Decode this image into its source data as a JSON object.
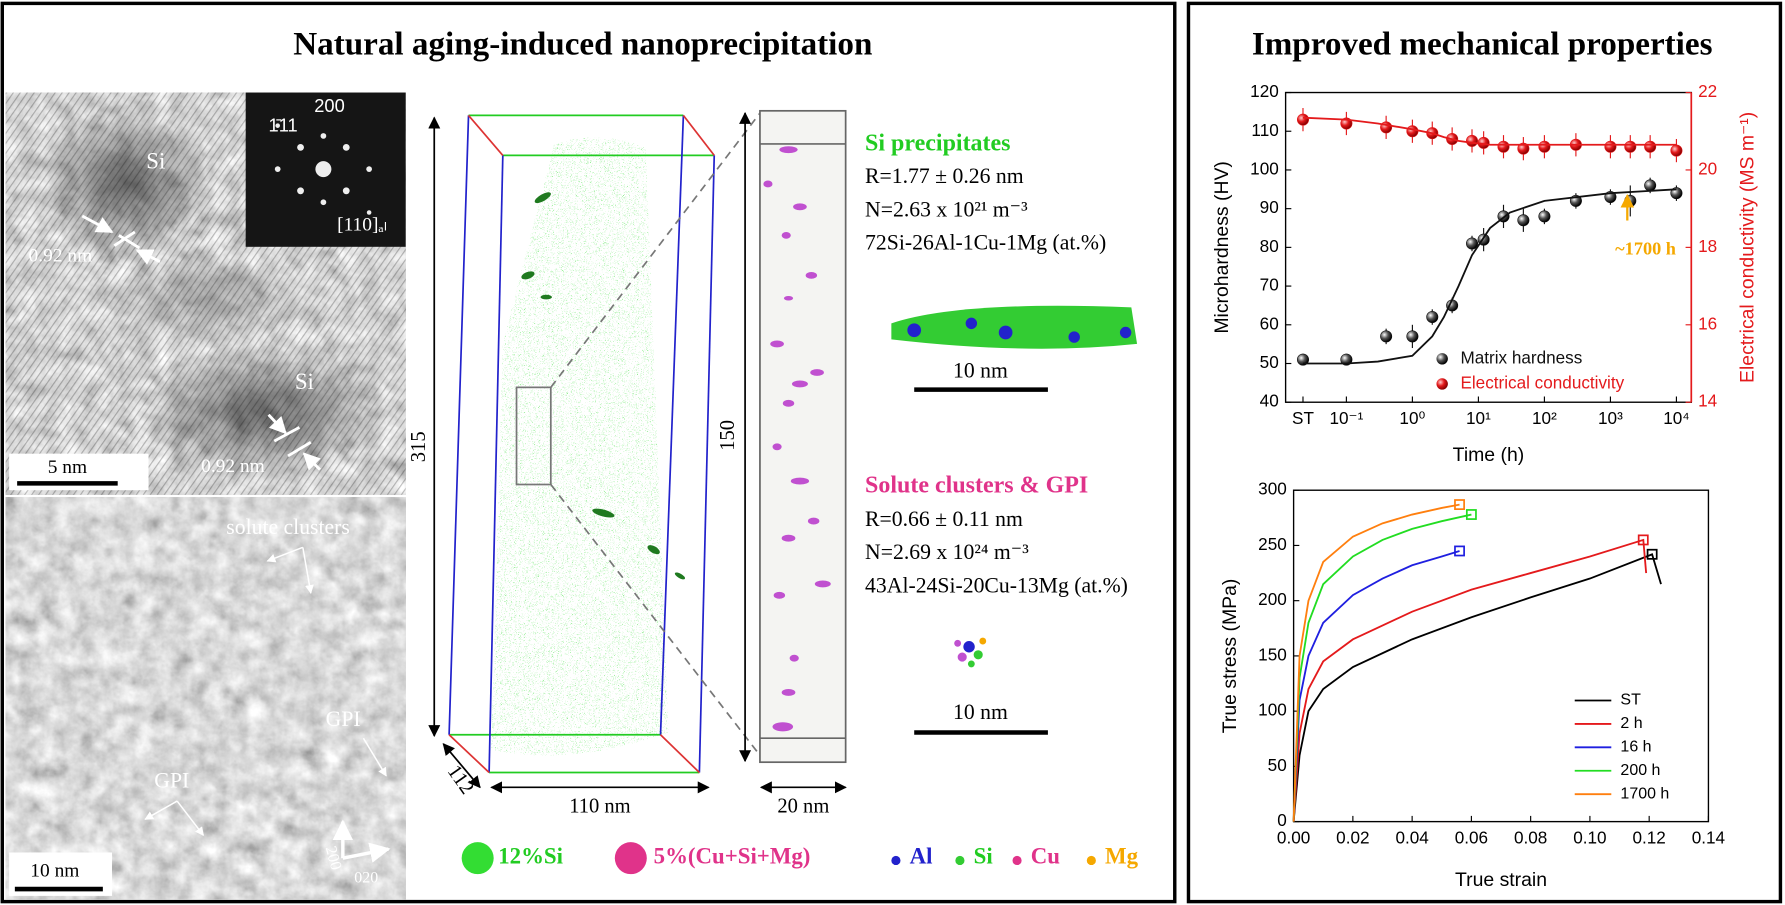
{
  "panel_left": {
    "title": "Natural aging-induced nanoprecipitation",
    "hrtem": {
      "label_si_1": "Si",
      "label_si_2": "Si",
      "spacing_1": "0.92 nm",
      "spacing_2": "0.92 nm",
      "scale": "5 nm",
      "fft_1": "1̄11",
      "fft_2": "200",
      "fft_zone": "[110]ₐₗ"
    },
    "haadf": {
      "clusters": "solute clusters",
      "gpi_1": "GPI",
      "gpi_2": "GPI",
      "scale": "10 nm",
      "dir_1": "200",
      "dir_2": "020"
    },
    "apt": {
      "dim_height": "315",
      "dim_slab": "150",
      "dim_depth": "112",
      "dim_width": "110 nm",
      "dim_slab_width": "20 nm"
    },
    "si": {
      "heading": "Si precipitates",
      "radius": "R=1.77 ± 0.26 nm",
      "density": "N=2.63 x 10²¹ m⁻³",
      "composition": "72Si-26Al-1Cu-1Mg (at.%)",
      "scale": "10 nm"
    },
    "gpi": {
      "heading": "Solute clusters & GPI",
      "radius": "R=0.66 ± 0.11 nm",
      "density": "N=2.69 x 10²⁴ m⁻³",
      "composition": "43Al-24Si-20Cu-13Mg (at.%)",
      "scale": "10 nm"
    },
    "legend": [
      "12%Si",
      "5%(Cu+Si+Mg)",
      "Al",
      "Si",
      "Cu",
      "Mg"
    ]
  },
  "panel_right": {
    "title": "Improved mechanical properties"
  },
  "chart_data": [
    {
      "type": "scatter",
      "x_label": "Time (h)",
      "y_label": "Microhardness (HV)",
      "y2_label": "Electrical conductivity (MS m⁻¹)",
      "log_x": true,
      "xlim": [
        0.012,
        16800
      ],
      "xticks": [
        {
          "value": 0.022,
          "label": "ST"
        },
        {
          "value": 0.1,
          "label": "10⁻¹"
        },
        {
          "value": 1,
          "label": "10⁰"
        },
        {
          "value": 10,
          "label": "10¹"
        },
        {
          "value": 100,
          "label": "10²"
        },
        {
          "value": 1000,
          "label": "10³"
        },
        {
          "value": 10000,
          "label": "10⁴"
        }
      ],
      "ylim": [
        40,
        120
      ],
      "yticks": [
        40,
        50,
        60,
        70,
        80,
        90,
        100,
        110,
        120
      ],
      "y2lim": [
        14,
        22
      ],
      "y2ticks": [
        14,
        16,
        18,
        20,
        22
      ],
      "legend": "lower right",
      "series": [
        {
          "name": "Matrix hardness",
          "color": "#111111",
          "mode": "markers",
          "x": [
            0.022,
            0.1,
            0.4,
            1,
            2,
            4,
            8,
            12,
            24,
            48,
            100,
            300,
            1000,
            2000,
            4000,
            10000
          ],
          "values": [
            51,
            51,
            57,
            57,
            62,
            65,
            81,
            82,
            88,
            87,
            88,
            92,
            93,
            92,
            96,
            94
          ],
          "errors": [
            1,
            1,
            2,
            3,
            2,
            2,
            2,
            3,
            3,
            3,
            2,
            2,
            2,
            4,
            2,
            2
          ]
        },
        {
          "name": "Electrical conductivity",
          "color": "#e41a1c",
          "mode": "markers",
          "axis": "y2",
          "x": [
            0.022,
            0.1,
            0.4,
            1,
            2,
            4,
            8,
            12,
            24,
            48,
            100,
            300,
            1000,
            2000,
            4000,
            10000
          ],
          "values": [
            21.3,
            21.2,
            21.1,
            21.0,
            20.95,
            20.8,
            20.75,
            20.7,
            20.6,
            20.55,
            20.6,
            20.65,
            20.6,
            20.6,
            20.6,
            20.5
          ],
          "errors": [
            0.3,
            0.3,
            0.3,
            0.3,
            0.3,
            0.3,
            0.3,
            0.3,
            0.3,
            0.3,
            0.3,
            0.3,
            0.3,
            0.3,
            0.3,
            0.3
          ]
        },
        {
          "color": "#111111",
          "mode": "line",
          "x": [
            0.022,
            0.1,
            0.3,
            1,
            2,
            3,
            5,
            8,
            15,
            30,
            100,
            1000,
            10000
          ],
          "values": [
            50,
            50,
            50.5,
            52,
            57,
            62,
            70,
            78,
            85,
            89,
            92,
            94,
            95
          ]
        },
        {
          "color": "#e41a1c",
          "mode": "line",
          "axis": "y2",
          "x": [
            0.022,
            0.1,
            0.3,
            1,
            2,
            3,
            5,
            8,
            15,
            30,
            100,
            1000,
            10000
          ],
          "values": [
            21.35,
            21.3,
            21.2,
            21.05,
            20.95,
            20.85,
            20.75,
            20.7,
            20.65,
            20.65,
            20.65,
            20.65,
            20.65
          ]
        }
      ],
      "annotation": {
        "text": "~1700 h",
        "color": "#f5a800"
      }
    },
    {
      "type": "line",
      "x_label": "True strain",
      "y_label": "True stress (MPa)",
      "xlim": [
        0,
        0.14
      ],
      "xticks": [
        {
          "value": 0,
          "label": "0.00"
        },
        {
          "value": 0.02,
          "label": "0.02"
        },
        {
          "value": 0.04,
          "label": "0.04"
        },
        {
          "value": 0.06,
          "label": "0.06"
        },
        {
          "value": 0.08,
          "label": "0.08"
        },
        {
          "value": 0.1,
          "label": "0.10"
        },
        {
          "value": 0.12,
          "label": "0.12"
        },
        {
          "value": 0.14,
          "label": "0.14"
        }
      ],
      "ylim": [
        0,
        300
      ],
      "yticks": [
        0,
        50,
        100,
        150,
        200,
        250,
        300
      ],
      "legend": "lower right",
      "series": [
        {
          "name": "ST",
          "color": "#000000",
          "x": [
            0,
            0.002,
            0.005,
            0.01,
            0.02,
            0.04,
            0.06,
            0.08,
            0.1,
            0.121,
            0.124
          ],
          "values": [
            0,
            60,
            100,
            120,
            140,
            165,
            185,
            203,
            220,
            242,
            215
          ]
        },
        {
          "name": "2 h",
          "color": "#e41a1c",
          "x": [
            0,
            0.002,
            0.005,
            0.01,
            0.02,
            0.04,
            0.06,
            0.08,
            0.1,
            0.118,
            0.119
          ],
          "values": [
            0,
            80,
            120,
            145,
            165,
            190,
            210,
            225,
            240,
            255,
            225
          ]
        },
        {
          "name": "16 h",
          "color": "#1f1fe0",
          "x": [
            0,
            0.002,
            0.005,
            0.01,
            0.02,
            0.03,
            0.04,
            0.05,
            0.056
          ],
          "values": [
            0,
            110,
            150,
            180,
            205,
            220,
            232,
            240,
            245
          ]
        },
        {
          "name": "200 h",
          "color": "#22dd22",
          "x": [
            0,
            0.002,
            0.005,
            0.01,
            0.02,
            0.03,
            0.04,
            0.05,
            0.06
          ],
          "values": [
            0,
            130,
            180,
            215,
            240,
            255,
            265,
            272,
            278
          ]
        },
        {
          "name": "1700 h",
          "color": "#ff7f0e",
          "x": [
            0,
            0.002,
            0.005,
            0.01,
            0.02,
            0.03,
            0.04,
            0.05,
            0.056
          ],
          "values": [
            0,
            150,
            200,
            235,
            258,
            270,
            278,
            284,
            287
          ]
        }
      ]
    }
  ]
}
